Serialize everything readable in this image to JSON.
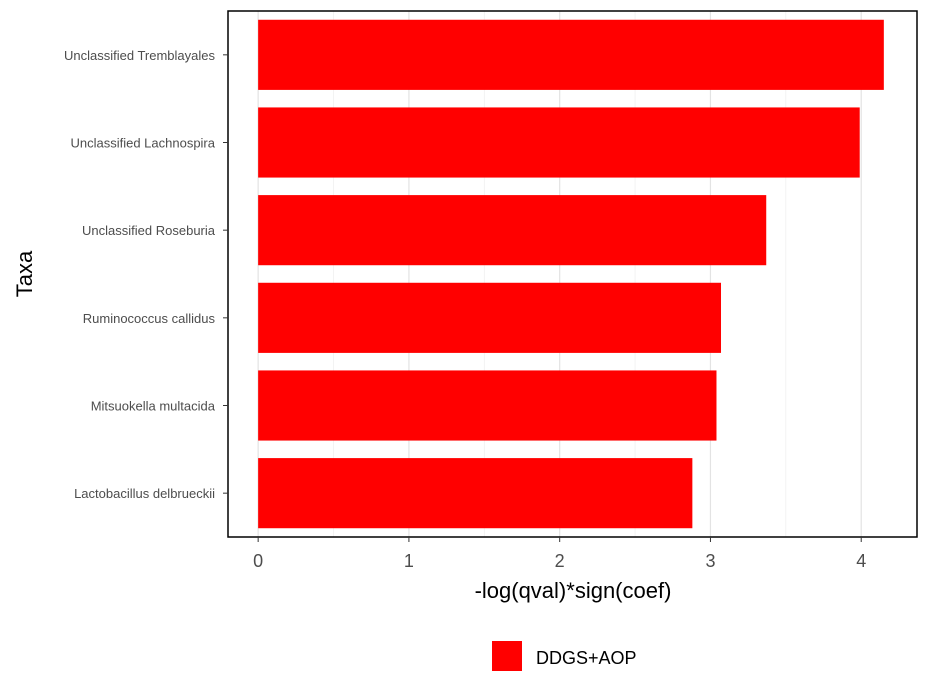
{
  "chart_data": {
    "type": "bar",
    "orientation": "horizontal",
    "categories": [
      "Unclassified Tremblayales",
      "Unclassified  Lachnospira",
      "Unclassified  Roseburia",
      "Ruminococcus callidus",
      "Mitsuokella multacida",
      "Lactobacillus delbrueckii"
    ],
    "series": [
      {
        "name": "DDGS+AOP",
        "values": [
          4.15,
          3.99,
          3.37,
          3.07,
          3.04,
          2.88
        ],
        "color": "#ff0000"
      }
    ],
    "xlabel": "-log(qval)*sign(coef)",
    "ylabel": "Taxa",
    "xlim": [
      -0.2,
      4.37
    ],
    "xticks": [
      "0",
      "1",
      "2",
      "3",
      "4"
    ],
    "grid": true,
    "legend_position": "bottom"
  }
}
